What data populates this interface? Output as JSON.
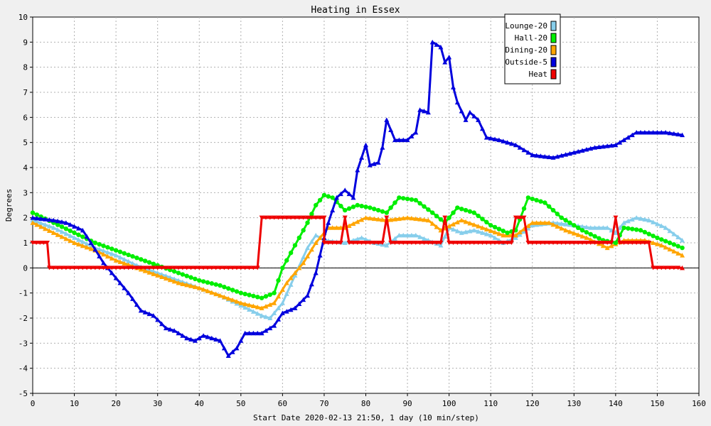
{
  "chart_data": {
    "type": "line",
    "title": "Heating in Essex",
    "xlabel": "Start Date 2020-02-13 21:50, 1 day (10 min/step)",
    "ylabel": "Degrees",
    "xlim": [
      0,
      160
    ],
    "ylim": [
      -5,
      10
    ],
    "x_ticks": [
      0,
      10,
      20,
      30,
      40,
      50,
      60,
      70,
      80,
      90,
      100,
      110,
      120,
      130,
      140,
      150,
      160
    ],
    "y_ticks": [
      -5,
      -4,
      -3,
      -2,
      -1,
      0,
      1,
      2,
      3,
      4,
      5,
      6,
      7,
      8,
      9,
      10
    ],
    "grid": true,
    "legend_position": "top-right",
    "series": [
      {
        "name": "Lounge-20",
        "color": "#87ceeb",
        "marker": "triangle",
        "points": [
          [
            0,
            1.9
          ],
          [
            5,
            1.6
          ],
          [
            10,
            1.2
          ],
          [
            15,
            0.8
          ],
          [
            20,
            0.5
          ],
          [
            25,
            0.1
          ],
          [
            30,
            -0.2
          ],
          [
            35,
            -0.5
          ],
          [
            40,
            -0.8
          ],
          [
            45,
            -1.1
          ],
          [
            50,
            -1.5
          ],
          [
            55,
            -1.9
          ],
          [
            57,
            -2.0
          ],
          [
            60,
            -1.4
          ],
          [
            63,
            -0.3
          ],
          [
            66,
            0.8
          ],
          [
            68,
            1.3
          ],
          [
            70,
            1.1
          ],
          [
            75,
            1.0
          ],
          [
            79,
            1.2
          ],
          [
            82,
            1.0
          ],
          [
            85,
            0.9
          ],
          [
            88,
            1.3
          ],
          [
            92,
            1.3
          ],
          [
            95,
            1.1
          ],
          [
            98,
            0.9
          ],
          [
            100,
            1.6
          ],
          [
            103,
            1.4
          ],
          [
            106,
            1.5
          ],
          [
            110,
            1.3
          ],
          [
            113,
            1.0
          ],
          [
            116,
            1.2
          ],
          [
            120,
            1.7
          ],
          [
            125,
            1.8
          ],
          [
            130,
            1.7
          ],
          [
            134,
            1.6
          ],
          [
            138,
            1.6
          ],
          [
            140,
            1.4
          ],
          [
            142,
            1.8
          ],
          [
            145,
            2.0
          ],
          [
            148,
            1.9
          ],
          [
            152,
            1.6
          ],
          [
            156,
            1.1
          ]
        ]
      },
      {
        "name": "Hall-20",
        "color": "#00ee00",
        "marker": "circle",
        "points": [
          [
            0,
            2.2
          ],
          [
            5,
            1.8
          ],
          [
            10,
            1.4
          ],
          [
            15,
            1.0
          ],
          [
            20,
            0.7
          ],
          [
            25,
            0.4
          ],
          [
            30,
            0.1
          ],
          [
            35,
            -0.2
          ],
          [
            40,
            -0.5
          ],
          [
            45,
            -0.7
          ],
          [
            50,
            -1.0
          ],
          [
            55,
            -1.2
          ],
          [
            58,
            -1.0
          ],
          [
            60,
            0.0
          ],
          [
            63,
            0.9
          ],
          [
            66,
            1.8
          ],
          [
            68,
            2.5
          ],
          [
            70,
            2.9
          ],
          [
            72,
            2.8
          ],
          [
            75,
            2.3
          ],
          [
            78,
            2.5
          ],
          [
            81,
            2.4
          ],
          [
            85,
            2.2
          ],
          [
            88,
            2.8
          ],
          [
            92,
            2.7
          ],
          [
            96,
            2.2
          ],
          [
            99,
            1.8
          ],
          [
            102,
            2.4
          ],
          [
            106,
            2.2
          ],
          [
            110,
            1.7
          ],
          [
            114,
            1.4
          ],
          [
            116,
            1.5
          ],
          [
            119,
            2.8
          ],
          [
            123,
            2.6
          ],
          [
            127,
            2.0
          ],
          [
            132,
            1.5
          ],
          [
            137,
            1.1
          ],
          [
            140,
            1.0
          ],
          [
            142,
            1.6
          ],
          [
            146,
            1.5
          ],
          [
            150,
            1.2
          ],
          [
            156,
            0.8
          ]
        ]
      },
      {
        "name": "Dining-20",
        "color": "#ffa500",
        "marker": "triangle",
        "points": [
          [
            0,
            1.8
          ],
          [
            5,
            1.4
          ],
          [
            10,
            1.0
          ],
          [
            15,
            0.7
          ],
          [
            20,
            0.3
          ],
          [
            25,
            0.0
          ],
          [
            30,
            -0.3
          ],
          [
            35,
            -0.6
          ],
          [
            40,
            -0.8
          ],
          [
            45,
            -1.1
          ],
          [
            50,
            -1.4
          ],
          [
            55,
            -1.6
          ],
          [
            58,
            -1.4
          ],
          [
            61,
            -0.6
          ],
          [
            65,
            0.2
          ],
          [
            68,
            1.0
          ],
          [
            71,
            1.6
          ],
          [
            75,
            1.6
          ],
          [
            80,
            2.0
          ],
          [
            85,
            1.9
          ],
          [
            90,
            2.0
          ],
          [
            95,
            1.9
          ],
          [
            98,
            1.5
          ],
          [
            103,
            1.9
          ],
          [
            108,
            1.6
          ],
          [
            113,
            1.3
          ],
          [
            116,
            1.3
          ],
          [
            120,
            1.8
          ],
          [
            124,
            1.8
          ],
          [
            128,
            1.5
          ],
          [
            133,
            1.2
          ],
          [
            138,
            0.8
          ],
          [
            142,
            1.1
          ],
          [
            147,
            1.1
          ],
          [
            151,
            0.9
          ],
          [
            156,
            0.5
          ]
        ]
      },
      {
        "name": "Outside-5",
        "color": "#0000dd",
        "marker": "triangle",
        "points": [
          [
            0,
            2.0
          ],
          [
            5,
            1.9
          ],
          [
            8,
            1.8
          ],
          [
            12,
            1.5
          ],
          [
            14,
            1.0
          ],
          [
            17,
            0.2
          ],
          [
            20,
            -0.4
          ],
          [
            23,
            -1.0
          ],
          [
            26,
            -1.7
          ],
          [
            29,
            -1.9
          ],
          [
            32,
            -2.4
          ],
          [
            34,
            -2.5
          ],
          [
            37,
            -2.8
          ],
          [
            39,
            -2.9
          ],
          [
            41,
            -2.7
          ],
          [
            43,
            -2.8
          ],
          [
            45,
            -2.9
          ],
          [
            47,
            -3.5
          ],
          [
            49,
            -3.2
          ],
          [
            51,
            -2.6
          ],
          [
            55,
            -2.6
          ],
          [
            58,
            -2.3
          ],
          [
            60,
            -1.8
          ],
          [
            63,
            -1.6
          ],
          [
            66,
            -1.1
          ],
          [
            68,
            -0.2
          ],
          [
            70,
            1.2
          ],
          [
            71,
            1.8
          ],
          [
            73,
            2.8
          ],
          [
            75,
            3.1
          ],
          [
            77,
            2.8
          ],
          [
            78,
            3.9
          ],
          [
            80,
            4.9
          ],
          [
            81,
            4.1
          ],
          [
            83,
            4.2
          ],
          [
            84,
            4.8
          ],
          [
            85,
            5.9
          ],
          [
            87,
            5.1
          ],
          [
            90,
            5.1
          ],
          [
            92,
            5.4
          ],
          [
            93,
            6.3
          ],
          [
            95,
            6.2
          ],
          [
            96,
            9.0
          ],
          [
            98,
            8.8
          ],
          [
            99,
            8.2
          ],
          [
            100,
            8.4
          ],
          [
            101,
            7.2
          ],
          [
            102,
            6.6
          ],
          [
            104,
            5.9
          ],
          [
            105,
            6.2
          ],
          [
            107,
            5.9
          ],
          [
            109,
            5.2
          ],
          [
            112,
            5.1
          ],
          [
            116,
            4.9
          ],
          [
            120,
            4.5
          ],
          [
            125,
            4.4
          ],
          [
            130,
            4.6
          ],
          [
            135,
            4.8
          ],
          [
            140,
            4.9
          ],
          [
            145,
            5.4
          ],
          [
            150,
            5.4
          ],
          [
            152,
            5.4
          ],
          [
            156,
            5.3
          ]
        ]
      },
      {
        "name": "Heat",
        "color": "#ee0000",
        "marker": "triangle-down",
        "points": [
          [
            0,
            1.0
          ],
          [
            3.5,
            1.0
          ],
          [
            4,
            0.0
          ],
          [
            54,
            0.0
          ],
          [
            55,
            2.0
          ],
          [
            70,
            2.0
          ],
          [
            70,
            1.0
          ],
          [
            74,
            1.0
          ],
          [
            75,
            2.0
          ],
          [
            76,
            1.0
          ],
          [
            84,
            1.0
          ],
          [
            85,
            2.0
          ],
          [
            86,
            1.0
          ],
          [
            98,
            1.0
          ],
          [
            99,
            2.0
          ],
          [
            100,
            1.0
          ],
          [
            115,
            1.0
          ],
          [
            116,
            2.0
          ],
          [
            118,
            2.0
          ],
          [
            119,
            1.0
          ],
          [
            139,
            1.0
          ],
          [
            140,
            2.0
          ],
          [
            141,
            1.0
          ],
          [
            148,
            1.0
          ],
          [
            149,
            0.0
          ],
          [
            156,
            0.0
          ]
        ]
      }
    ]
  }
}
